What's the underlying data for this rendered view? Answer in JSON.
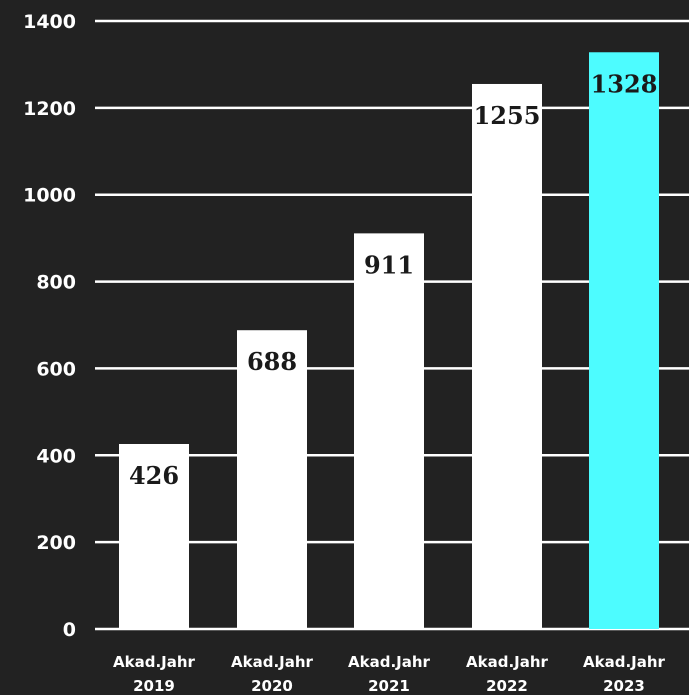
{
  "chart_data": {
    "type": "bar",
    "categories": [
      [
        "Akad.Jahr",
        "2019"
      ],
      [
        "Akad.Jahr",
        "2020"
      ],
      [
        "Akad.Jahr",
        "2021"
      ],
      [
        "Akad.Jahr",
        "2022"
      ],
      [
        "Akad.Jahr",
        "2023"
      ]
    ],
    "values": [
      426,
      688,
      911,
      1255,
      1328
    ],
    "value_labels": [
      "426",
      "688",
      "911",
      "1255",
      "1328"
    ],
    "yticks": [
      0,
      200,
      400,
      600,
      800,
      1000,
      1200,
      1400
    ],
    "ylim": [
      0,
      1400
    ],
    "grid": true,
    "colors": {
      "background": "#222222",
      "bar": "#ffffff",
      "bar_highlight": "#4dfcff",
      "highlight_index": 4,
      "gridline": "#ffffff",
      "tick_text": "#ffffff",
      "value_text": "#1a1a1a"
    }
  }
}
